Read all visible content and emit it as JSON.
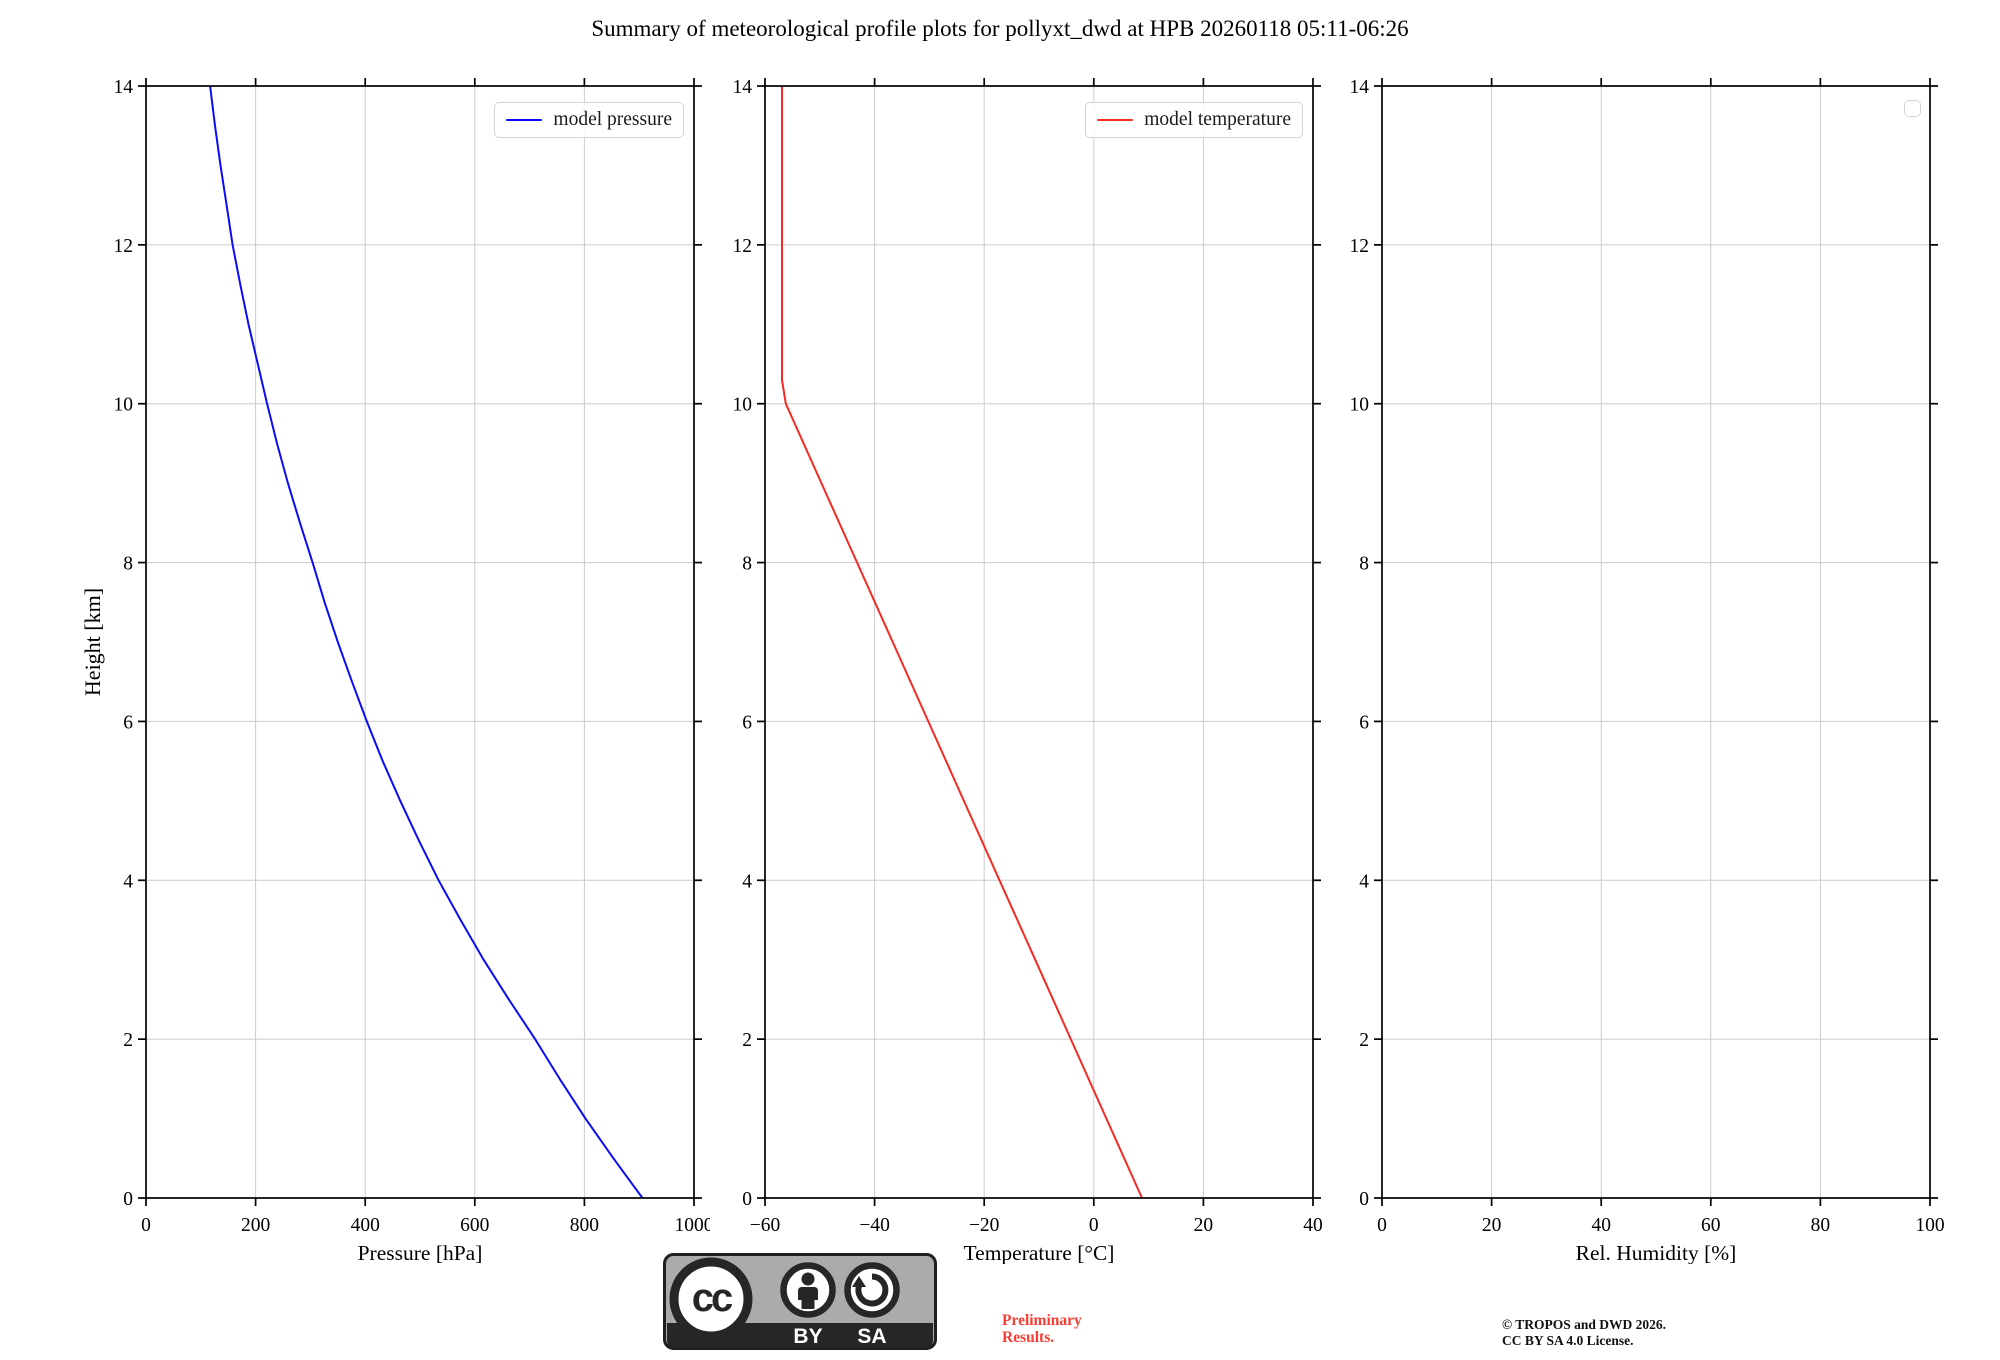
{
  "title": "Summary of meteorological profile plots for pollyxt_dwd at HPB 20260118 05:11-06:26",
  "ylabel": "Height [km]",
  "colors": {
    "pressure_line": "#0b0bf5",
    "temperature_line": "#f52a22",
    "preliminary_text": "#fa3c32",
    "grid": "#cccccc",
    "axis": "#000000"
  },
  "chart_data": [
    {
      "type": "line",
      "xlabel": "Pressure [hPa]",
      "ylabel": "Height [km]",
      "xlim": [
        0,
        1000
      ],
      "xticks": [
        0,
        200,
        400,
        600,
        800,
        1000
      ],
      "ylim": [
        0,
        14
      ],
      "yticks": [
        0,
        2,
        4,
        6,
        8,
        10,
        12,
        14
      ],
      "grid": true,
      "legend": {
        "label": "model pressure",
        "position": "upper right"
      },
      "series": [
        {
          "name": "model pressure",
          "color": "#0b0bf5",
          "points": [
            [
              906,
              0
            ],
            [
              853,
              0.5
            ],
            [
              802,
              1
            ],
            [
              755,
              1.5
            ],
            [
              710,
              2
            ],
            [
              662,
              2.5
            ],
            [
              616,
              3
            ],
            [
              574,
              3.5
            ],
            [
              534,
              4
            ],
            [
              498,
              4.5
            ],
            [
              464,
              5
            ],
            [
              432,
              5.5
            ],
            [
              403,
              6
            ],
            [
              376,
              6.5
            ],
            [
              350,
              7
            ],
            [
              326,
              7.5
            ],
            [
              304,
              8
            ],
            [
              281,
              8.5
            ],
            [
              259,
              9
            ],
            [
              239,
              9.5
            ],
            [
              221,
              10
            ],
            [
              204,
              10.5
            ],
            [
              187,
              11
            ],
            [
              172,
              11.5
            ],
            [
              158,
              12
            ],
            [
              147,
              12.5
            ],
            [
              136,
              13
            ],
            [
              126,
              13.5
            ],
            [
              117,
              14
            ]
          ]
        }
      ]
    },
    {
      "type": "line",
      "xlabel": "Temperature [°C]",
      "ylabel": "Height [km]",
      "xlim": [
        -60,
        40
      ],
      "xticks": [
        -60,
        -40,
        -20,
        0,
        20,
        40
      ],
      "ylim": [
        0,
        14
      ],
      "yticks": [
        0,
        2,
        4,
        6,
        8,
        10,
        12,
        14
      ],
      "grid": true,
      "legend": {
        "label": "model temperature",
        "position": "upper right"
      },
      "series": [
        {
          "name": "model temperature",
          "color": "#f52a22",
          "points": [
            [
              8.8,
              0
            ],
            [
              2.3,
              1
            ],
            [
              -4.2,
              2
            ],
            [
              -10.7,
              3
            ],
            [
              -17.2,
              4
            ],
            [
              -23.7,
              5
            ],
            [
              -30.2,
              6
            ],
            [
              -36.7,
              7
            ],
            [
              -43.2,
              8
            ],
            [
              -49.7,
              9
            ],
            [
              -56.2,
              10
            ],
            [
              -56.9,
              10.3
            ],
            [
              -56.9,
              12
            ],
            [
              -56.9,
              14
            ]
          ]
        }
      ]
    },
    {
      "type": "line",
      "xlabel": "Rel. Humidity [%]",
      "ylabel": "Height [km]",
      "xlim": [
        0,
        100
      ],
      "xticks": [
        0,
        20,
        40,
        60,
        80,
        100
      ],
      "ylim": [
        0,
        14
      ],
      "yticks": [
        0,
        2,
        4,
        6,
        8,
        10,
        12,
        14
      ],
      "grid": true,
      "legend": {
        "label": "",
        "position": "upper right"
      },
      "series": []
    }
  ],
  "footer": {
    "license_badge": {
      "cc": "cc",
      "by": "BY",
      "sa": "SA"
    },
    "preliminary": "Preliminary\nResults.",
    "copyright_line1": "© TROPOS and DWD 2026.",
    "copyright_line2": "CC BY SA 4.0 License."
  }
}
